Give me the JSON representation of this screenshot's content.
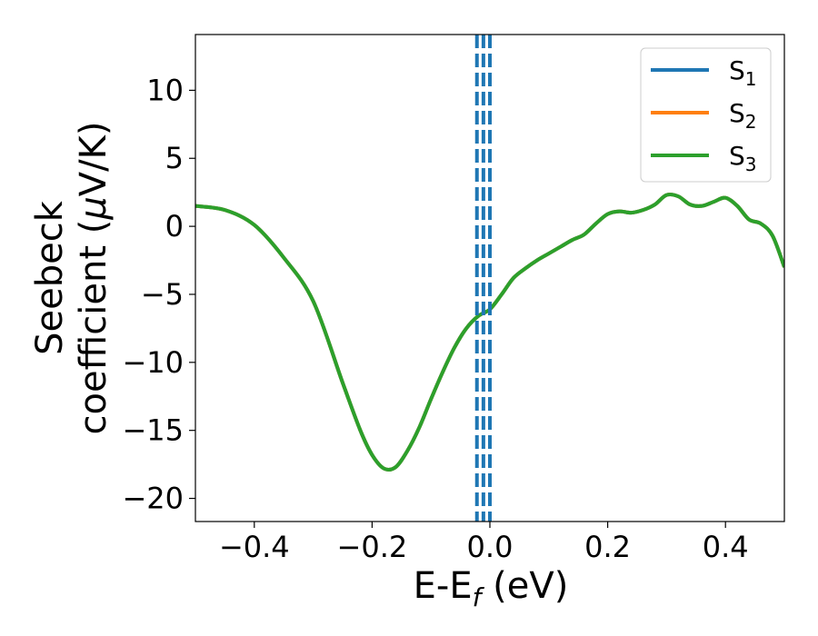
{
  "chart_data": {
    "type": "line",
    "xlabel": {
      "main": "E-E",
      "sub": "f",
      "suffix": " (eV)"
    },
    "ylabel": {
      "line1": "Seebeck",
      "line2_prefix": "coefficient  (",
      "line2_mu": "μ",
      "line2_suffix": "V/K)"
    },
    "xlim": [
      -0.5,
      0.5
    ],
    "ylim": [
      -21.7,
      14.1
    ],
    "xticks": [
      -0.4,
      -0.2,
      0.0,
      0.2,
      0.4
    ],
    "xtick_labels": [
      "−0.4",
      "−0.2",
      "0.0",
      "0.2",
      "0.4"
    ],
    "yticks": [
      10,
      5,
      0,
      -5,
      -10,
      -15,
      -20
    ],
    "ytick_labels": [
      "10",
      "5",
      "0",
      "−5",
      "−10",
      "−15",
      "−20"
    ],
    "grid": false,
    "legend_position": "top-right",
    "series": [
      {
        "name": "S",
        "sub": "1",
        "color": "#1f77b4",
        "x": [
          -0.5,
          -0.45,
          -0.4,
          -0.35,
          -0.3,
          -0.25,
          -0.22,
          -0.2,
          -0.18,
          -0.16,
          -0.14,
          -0.12,
          -0.1,
          -0.08,
          -0.06,
          -0.04,
          -0.02,
          0.0,
          0.02,
          0.04,
          0.06,
          0.08,
          0.1,
          0.12,
          0.14,
          0.16,
          0.18,
          0.2,
          0.22,
          0.24,
          0.26,
          0.28,
          0.3,
          0.32,
          0.34,
          0.36,
          0.38,
          0.4,
          0.42,
          0.44,
          0.46,
          0.48,
          0.5
        ],
        "y": [
          1.5,
          1.2,
          0.1,
          -2.3,
          -5.5,
          -11.5,
          -15.0,
          -16.8,
          -17.8,
          -17.7,
          -16.5,
          -14.8,
          -12.7,
          -10.7,
          -8.9,
          -7.5,
          -6.6,
          -6.1,
          -5.0,
          -3.8,
          -3.1,
          -2.5,
          -2.0,
          -1.5,
          -1.0,
          -0.6,
          0.2,
          0.9,
          1.1,
          1.0,
          1.2,
          1.6,
          2.3,
          2.2,
          1.6,
          1.5,
          1.8,
          2.1,
          1.5,
          0.5,
          0.2,
          -0.7,
          -3.0
        ]
      },
      {
        "name": "S",
        "sub": "2",
        "color": "#ff7f0e",
        "x": [
          -0.5,
          -0.45,
          -0.4,
          -0.35,
          -0.3,
          -0.25,
          -0.22,
          -0.2,
          -0.18,
          -0.16,
          -0.14,
          -0.12,
          -0.1,
          -0.08,
          -0.06,
          -0.04,
          -0.02,
          0.0,
          0.02,
          0.04,
          0.06,
          0.08,
          0.1,
          0.12,
          0.14,
          0.16,
          0.18,
          0.2,
          0.22,
          0.24,
          0.26,
          0.28,
          0.3,
          0.32,
          0.34,
          0.36,
          0.38,
          0.4,
          0.42,
          0.44,
          0.46,
          0.48,
          0.5
        ],
        "y": [
          1.5,
          1.2,
          0.1,
          -2.3,
          -5.5,
          -11.5,
          -15.0,
          -16.8,
          -17.8,
          -17.7,
          -16.5,
          -14.8,
          -12.7,
          -10.7,
          -8.9,
          -7.5,
          -6.6,
          -6.1,
          -5.0,
          -3.8,
          -3.1,
          -2.5,
          -2.0,
          -1.5,
          -1.0,
          -0.6,
          0.2,
          0.9,
          1.1,
          1.0,
          1.2,
          1.6,
          2.3,
          2.2,
          1.6,
          1.5,
          1.8,
          2.1,
          1.5,
          0.5,
          0.2,
          -0.7,
          -3.0
        ]
      },
      {
        "name": "S",
        "sub": "3",
        "color": "#2ca02c",
        "x": [
          -0.5,
          -0.45,
          -0.4,
          -0.35,
          -0.3,
          -0.25,
          -0.22,
          -0.2,
          -0.18,
          -0.16,
          -0.14,
          -0.12,
          -0.1,
          -0.08,
          -0.06,
          -0.04,
          -0.02,
          0.0,
          0.02,
          0.04,
          0.06,
          0.08,
          0.1,
          0.12,
          0.14,
          0.16,
          0.18,
          0.2,
          0.22,
          0.24,
          0.26,
          0.28,
          0.3,
          0.32,
          0.34,
          0.36,
          0.38,
          0.4,
          0.42,
          0.44,
          0.46,
          0.48,
          0.5
        ],
        "y": [
          1.5,
          1.2,
          0.1,
          -2.3,
          -5.5,
          -11.5,
          -15.0,
          -16.8,
          -17.8,
          -17.7,
          -16.5,
          -14.8,
          -12.7,
          -10.7,
          -8.9,
          -7.5,
          -6.6,
          -6.1,
          -5.0,
          -3.8,
          -3.1,
          -2.5,
          -2.0,
          -1.5,
          -1.0,
          -0.6,
          0.2,
          0.9,
          1.1,
          1.0,
          1.2,
          1.6,
          2.3,
          2.2,
          1.6,
          1.5,
          1.8,
          2.1,
          1.5,
          0.5,
          0.2,
          -0.7,
          -3.0
        ]
      }
    ],
    "vlines": [
      {
        "x": -0.022,
        "color": "#1f77b4",
        "style": "dashed"
      },
      {
        "x": -0.011,
        "color": "#1f77b4",
        "style": "dashed"
      },
      {
        "x": 0.0,
        "color": "#000000",
        "style": "dashed"
      },
      {
        "x": 0.0,
        "color": "#1f77b4",
        "style": "dashed"
      }
    ]
  }
}
